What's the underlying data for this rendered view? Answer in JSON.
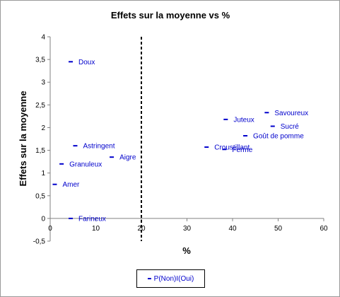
{
  "chart_data": {
    "type": "scatter",
    "title": "Effets sur la moyenne vs %",
    "xlabel": "%",
    "ylabel": "Effets sur la moyenne",
    "xlim": [
      0,
      60
    ],
    "ylim": [
      -0.5,
      4
    ],
    "xticks": [
      0,
      10,
      20,
      30,
      40,
      50,
      60
    ],
    "yticks": [
      -0.5,
      0,
      0.5,
      1,
      1.5,
      2,
      2.5,
      3,
      3.5,
      4
    ],
    "grid": false,
    "legend_position": "bottom",
    "reference_line": {
      "x": 20,
      "style": "dashed",
      "color": "#000000"
    },
    "marker_color": "#0000cc",
    "series": [
      {
        "name": "P(Non)I(Oui)",
        "points": [
          {
            "label": "Doux",
            "x": 4.5,
            "y": 3.45
          },
          {
            "label": "Astringent",
            "x": 5.5,
            "y": 1.6
          },
          {
            "label": "Granuleux",
            "x": 2.5,
            "y": 1.2
          },
          {
            "label": "Aigre",
            "x": 13.5,
            "y": 1.35
          },
          {
            "label": "Amer",
            "x": 1.0,
            "y": 0.75
          },
          {
            "label": "Farineux",
            "x": 4.5,
            "y": 0.0
          },
          {
            "label": "Savoureux",
            "x": 47.5,
            "y": 2.33
          },
          {
            "label": "Juteux",
            "x": 38.5,
            "y": 2.18
          },
          {
            "label": "Sucré",
            "x": 48.8,
            "y": 2.03
          },
          {
            "label": "Goût de pomme",
            "x": 42.8,
            "y": 1.82
          },
          {
            "label": "Croustillant",
            "x": 34.3,
            "y": 1.57
          },
          {
            "label": "Ferme",
            "x": 38.2,
            "y": 1.52
          }
        ]
      }
    ]
  }
}
